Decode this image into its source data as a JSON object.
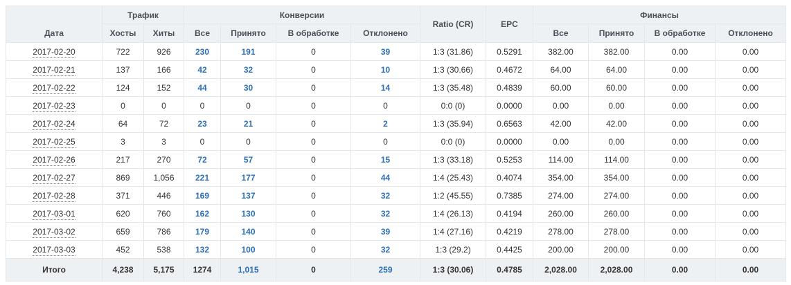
{
  "headers": {
    "date": "Дата",
    "traffic": "Трафик",
    "conversions": "Конверсии",
    "ratio": "Ratio (CR)",
    "epc": "EPC",
    "finance": "Финансы",
    "hosts": "Хосты",
    "hits": "Хиты",
    "conv_all": "Все",
    "conv_accepted": "Принято",
    "conv_processing": "В обработке",
    "conv_rejected": "Отклонено",
    "fin_all": "Все",
    "fin_accepted": "Принято",
    "fin_processing": "В обработке",
    "fin_rejected": "Отклонено"
  },
  "rows": [
    {
      "date": "2017-02-20",
      "hosts": "722",
      "hits": "926",
      "conv_all": "230",
      "conv_accepted": "191",
      "conv_processing": "0",
      "conv_rejected": "39",
      "ratio": "1:3 (31.86)",
      "epc": "0.5291",
      "fin_all": "382.00",
      "fin_accepted": "382.00",
      "fin_processing": "0.00",
      "fin_rejected": "0.00"
    },
    {
      "date": "2017-02-21",
      "hosts": "137",
      "hits": "166",
      "conv_all": "42",
      "conv_accepted": "32",
      "conv_processing": "0",
      "conv_rejected": "10",
      "ratio": "1:3 (30.66)",
      "epc": "0.4672",
      "fin_all": "64.00",
      "fin_accepted": "64.00",
      "fin_processing": "0.00",
      "fin_rejected": "0.00"
    },
    {
      "date": "2017-02-22",
      "hosts": "124",
      "hits": "152",
      "conv_all": "44",
      "conv_accepted": "30",
      "conv_processing": "0",
      "conv_rejected": "14",
      "ratio": "1:3 (35.48)",
      "epc": "0.4839",
      "fin_all": "60.00",
      "fin_accepted": "60.00",
      "fin_processing": "0.00",
      "fin_rejected": "0.00"
    },
    {
      "date": "2017-02-23",
      "hosts": "0",
      "hits": "0",
      "conv_all": "0",
      "conv_accepted": "0",
      "conv_processing": "0",
      "conv_rejected": "0",
      "ratio": "0:0 (0)",
      "epc": "0.0000",
      "fin_all": "0.00",
      "fin_accepted": "0.00",
      "fin_processing": "0.00",
      "fin_rejected": "0.00"
    },
    {
      "date": "2017-02-24",
      "hosts": "64",
      "hits": "72",
      "conv_all": "23",
      "conv_accepted": "21",
      "conv_processing": "0",
      "conv_rejected": "2",
      "ratio": "1:3 (35.94)",
      "epc": "0.6563",
      "fin_all": "42.00",
      "fin_accepted": "42.00",
      "fin_processing": "0.00",
      "fin_rejected": "0.00"
    },
    {
      "date": "2017-02-25",
      "hosts": "3",
      "hits": "3",
      "conv_all": "0",
      "conv_accepted": "0",
      "conv_processing": "0",
      "conv_rejected": "0",
      "ratio": "0:0 (0)",
      "epc": "0.0000",
      "fin_all": "0.00",
      "fin_accepted": "0.00",
      "fin_processing": "0.00",
      "fin_rejected": "0.00"
    },
    {
      "date": "2017-02-26",
      "hosts": "217",
      "hits": "270",
      "conv_all": "72",
      "conv_accepted": "57",
      "conv_processing": "0",
      "conv_rejected": "15",
      "ratio": "1:3 (33.18)",
      "epc": "0.5253",
      "fin_all": "114.00",
      "fin_accepted": "114.00",
      "fin_processing": "0.00",
      "fin_rejected": "0.00"
    },
    {
      "date": "2017-02-27",
      "hosts": "869",
      "hits": "1,056",
      "conv_all": "221",
      "conv_accepted": "177",
      "conv_processing": "0",
      "conv_rejected": "44",
      "ratio": "1:4 (25.43)",
      "epc": "0.4074",
      "fin_all": "354.00",
      "fin_accepted": "354.00",
      "fin_processing": "0.00",
      "fin_rejected": "0.00"
    },
    {
      "date": "2017-02-28",
      "hosts": "371",
      "hits": "446",
      "conv_all": "169",
      "conv_accepted": "137",
      "conv_processing": "0",
      "conv_rejected": "32",
      "ratio": "1:2 (45.55)",
      "epc": "0.7385",
      "fin_all": "274.00",
      "fin_accepted": "274.00",
      "fin_processing": "0.00",
      "fin_rejected": "0.00"
    },
    {
      "date": "2017-03-01",
      "hosts": "620",
      "hits": "760",
      "conv_all": "162",
      "conv_accepted": "130",
      "conv_processing": "0",
      "conv_rejected": "32",
      "ratio": "1:4 (26.13)",
      "epc": "0.4194",
      "fin_all": "260.00",
      "fin_accepted": "260.00",
      "fin_processing": "0.00",
      "fin_rejected": "0.00"
    },
    {
      "date": "2017-03-02",
      "hosts": "659",
      "hits": "786",
      "conv_all": "179",
      "conv_accepted": "140",
      "conv_processing": "0",
      "conv_rejected": "39",
      "ratio": "1:4 (27.16)",
      "epc": "0.4219",
      "fin_all": "278.00",
      "fin_accepted": "278.00",
      "fin_processing": "0.00",
      "fin_rejected": "0.00"
    },
    {
      "date": "2017-03-03",
      "hosts": "452",
      "hits": "538",
      "conv_all": "132",
      "conv_accepted": "100",
      "conv_processing": "0",
      "conv_rejected": "32",
      "ratio": "1:3 (29.2)",
      "epc": "0.4425",
      "fin_all": "200.00",
      "fin_accepted": "200.00",
      "fin_processing": "0.00",
      "fin_rejected": "0.00"
    }
  ],
  "total": {
    "date": "Итого",
    "hosts": "4,238",
    "hits": "5,175",
    "conv_all": "1274",
    "conv_accepted": "1,015",
    "conv_processing": "0",
    "conv_rejected": "259",
    "ratio": "1:3 (30.06)",
    "epc": "0.4785",
    "fin_all": "2,028.00",
    "fin_accepted": "2,028.00",
    "fin_processing": "0.00",
    "fin_rejected": "0.00"
  },
  "colors": {
    "link": "#2c6fb7",
    "header_bg": "#eef1f4",
    "border": "#e3e6ea"
  }
}
